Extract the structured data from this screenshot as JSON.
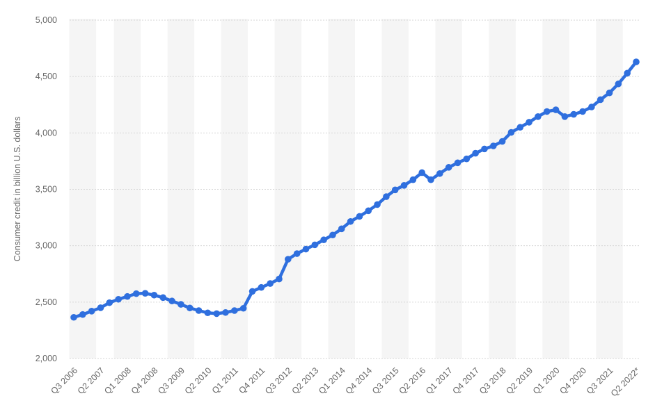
{
  "chart_data": {
    "type": "line",
    "title": "",
    "xlabel": "",
    "ylabel": "Consumer credit in billion U.S. dollars",
    "ylim": [
      2000,
      5000
    ],
    "yticks": [
      2000,
      2500,
      3000,
      3500,
      4000,
      4500,
      5000
    ],
    "ytick_labels": [
      "2,000",
      "2,500",
      "3,000",
      "3,500",
      "4,000",
      "4,500",
      "5,000"
    ],
    "grid": true,
    "legend": "none",
    "line_color": "#2f6fde",
    "band_color": "#f5f5f5",
    "x": [
      "Q3 2006",
      "Q4 2006",
      "Q1 2007",
      "Q2 2007",
      "Q3 2007",
      "Q4 2007",
      "Q1 2008",
      "Q2 2008",
      "Q3 2008",
      "Q4 2008",
      "Q1 2009",
      "Q2 2009",
      "Q3 2009",
      "Q4 2009",
      "Q1 2010",
      "Q2 2010",
      "Q3 2010",
      "Q4 2010",
      "Q1 2011",
      "Q2 2011",
      "Q3 2011",
      "Q4 2011",
      "Q1 2012",
      "Q2 2012",
      "Q3 2012",
      "Q4 2012",
      "Q1 2013",
      "Q2 2013",
      "Q3 2013",
      "Q4 2013",
      "Q1 2014",
      "Q2 2014",
      "Q3 2014",
      "Q4 2014",
      "Q1 2015",
      "Q2 2015",
      "Q3 2015",
      "Q4 2015",
      "Q1 2016",
      "Q2 2016",
      "Q3 2016",
      "Q4 2016",
      "Q1 2017",
      "Q2 2017",
      "Q3 2017",
      "Q4 2017",
      "Q1 2018",
      "Q2 2018",
      "Q3 2018",
      "Q4 2018",
      "Q1 2019",
      "Q2 2019",
      "Q3 2019",
      "Q4 2019",
      "Q1 2020",
      "Q2 2020",
      "Q3 2020",
      "Q4 2020",
      "Q1 2021",
      "Q2 2021",
      "Q3 2021",
      "Q4 2021",
      "Q1 2022",
      "Q2 2022*"
    ],
    "xtick_labels": [
      "Q3 2006",
      "Q2 2007",
      "Q1 2008",
      "Q4 2008",
      "Q3 2009",
      "Q2 2010",
      "Q1 2011",
      "Q4 2011",
      "Q3 2012",
      "Q2 2013",
      "Q1 2014",
      "Q4 2014",
      "Q3 2015",
      "Q2 2016",
      "Q1 2017",
      "Q4 2017",
      "Q3 2018",
      "Q2 2019",
      "Q1 2020",
      "Q4 2020",
      "Q3 2021",
      "Q2 2022*"
    ],
    "series": [
      {
        "values": [
          2365,
          2390,
          2420,
          2450,
          2495,
          2525,
          2550,
          2575,
          2578,
          2562,
          2540,
          2510,
          2480,
          2448,
          2425,
          2405,
          2398,
          2408,
          2425,
          2445,
          2595,
          2630,
          2665,
          2705,
          2880,
          2930,
          2970,
          3008,
          3052,
          3095,
          3150,
          3215,
          3260,
          3310,
          3365,
          3435,
          3495,
          3535,
          3585,
          3648,
          3585,
          3640,
          3695,
          3735,
          3770,
          3820,
          3858,
          3885,
          3925,
          4005,
          4050,
          4095,
          4145,
          4190,
          4205,
          4145,
          4165,
          4190,
          4230,
          4295,
          4355,
          4435,
          4530,
          4630
        ]
      }
    ]
  }
}
